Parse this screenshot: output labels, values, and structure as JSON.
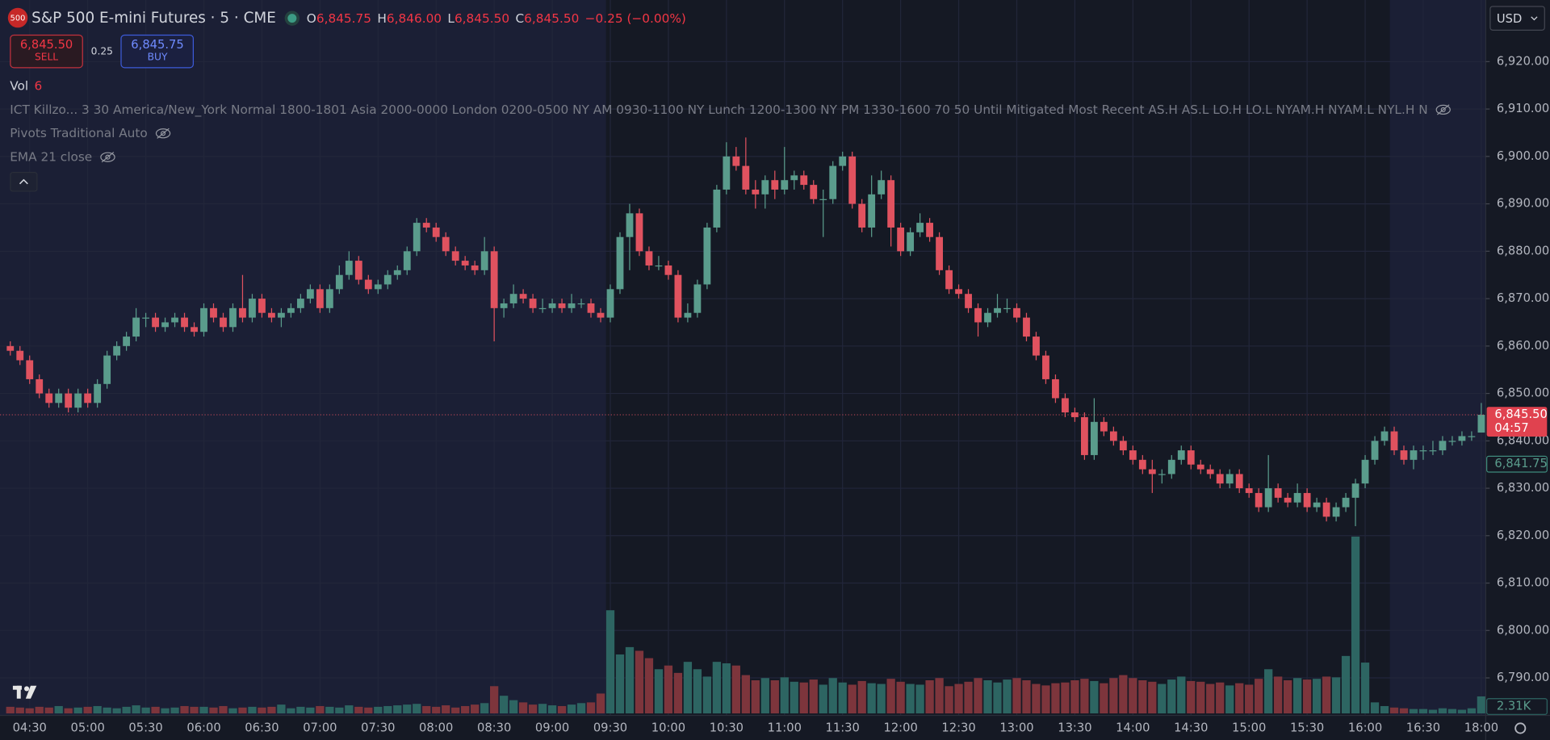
{
  "header": {
    "badge": "500",
    "symbol": "S&P 500 E-mini Futures · 5 · CME",
    "open_label": "O",
    "open": "6,845.75",
    "high_label": "H",
    "high": "6,846.00",
    "low_label": "L",
    "low": "6,845.50",
    "close_label": "C",
    "close": "6,845.50",
    "change": "−0.25 (−0.00%)"
  },
  "trade": {
    "sell_price": "6,845.50",
    "sell": "SELL",
    "spread": "0.25",
    "buy_price": "6,845.75",
    "buy": "BUY"
  },
  "indicators": {
    "vol_label": "Vol",
    "vol_value": "6",
    "killzones": "ICT Killzo... 3 30 America/New_York Normal 1800-1801 Asia 2000-0000 London 0200-0500 NY AM 0930-1100 NY Lunch 1200-1300 NY PM 1330-1600 70 50 Until Mitigated Most Recent AS.H AS.L LO.H LO.L NYAM.H NYAM.L NYL.H N",
    "pivots": "Pivots Traditional Auto",
    "ema": "EMA 21 close"
  },
  "currency": "USD",
  "scale_tags": {
    "last_price": "6,845.50",
    "countdown": "04:57",
    "prev_price": "6,841.75",
    "volume": "2.31K"
  },
  "chart_data": {
    "type": "candlestick",
    "up_color": "#5a9c8c",
    "down_color": "#e0525f",
    "volume_up_color": "#2d6562",
    "volume_down_color": "#7d353c",
    "grid": true,
    "ylim": [
      6782.5,
      6933
    ],
    "yticks": [
      {
        "value": 6790,
        "label": "6,790.00"
      },
      {
        "value": 6800,
        "label": "6,800.00"
      },
      {
        "value": 6810,
        "label": "6,810.00"
      },
      {
        "value": 6820,
        "label": "6,820.00"
      },
      {
        "value": 6830,
        "label": "6,830.00"
      },
      {
        "value": 6840,
        "label": "6,840.00"
      },
      {
        "value": 6850,
        "label": "6,850.00"
      },
      {
        "value": 6860,
        "label": "6,860.00"
      },
      {
        "value": 6870,
        "label": "6,870.00"
      },
      {
        "value": 6880,
        "label": "6,880.00"
      },
      {
        "value": 6890,
        "label": "6,890.00"
      },
      {
        "value": 6900,
        "label": "6,900.00"
      },
      {
        "value": 6910,
        "label": "6,910.00"
      },
      {
        "value": 6920,
        "label": "6,920.00"
      }
    ],
    "categories": [
      null,
      null,
      "04:30",
      null,
      null,
      null,
      null,
      null,
      "05:00",
      null,
      null,
      null,
      null,
      null,
      "05:30",
      null,
      null,
      null,
      null,
      null,
      "06:00",
      null,
      null,
      null,
      null,
      null,
      "06:30",
      null,
      null,
      null,
      null,
      null,
      "07:00",
      null,
      null,
      null,
      null,
      null,
      "07:30",
      null,
      null,
      null,
      null,
      null,
      "08:00",
      null,
      null,
      null,
      null,
      null,
      "08:30",
      null,
      null,
      null,
      null,
      null,
      "09:00",
      null,
      null,
      null,
      null,
      null,
      "09:30",
      null,
      null,
      null,
      null,
      null,
      "10:00",
      null,
      null,
      null,
      null,
      null,
      "10:30",
      null,
      null,
      null,
      null,
      null,
      "11:00",
      null,
      null,
      null,
      null,
      null,
      "11:30",
      null,
      null,
      null,
      null,
      null,
      "12:00",
      null,
      null,
      null,
      null,
      null,
      "12:30",
      null,
      null,
      null,
      null,
      null,
      "13:00",
      null,
      null,
      null,
      null,
      null,
      "13:30",
      null,
      null,
      null,
      null,
      null,
      "14:00",
      null,
      null,
      null,
      null,
      null,
      "14:30",
      null,
      null,
      null,
      null,
      null,
      "15:00",
      null,
      null,
      null,
      null,
      null,
      "15:30",
      null,
      null,
      null,
      null,
      null,
      "16:00",
      null,
      null,
      null,
      null,
      null,
      "16:30",
      null,
      null,
      null,
      null,
      null,
      "18:00"
    ],
    "ohlc": [
      [
        6860,
        6861,
        6858,
        6859
      ],
      [
        6859,
        6860,
        6856,
        6857
      ],
      [
        6857,
        6858,
        6852,
        6853
      ],
      [
        6853,
        6854,
        6849,
        6850
      ],
      [
        6850,
        6851,
        6847,
        6848
      ],
      [
        6848,
        6851,
        6847,
        6850
      ],
      [
        6850,
        6851,
        6846,
        6847
      ],
      [
        6847,
        6851,
        6846,
        6850
      ],
      [
        6850,
        6851,
        6847,
        6848
      ],
      [
        6848,
        6853,
        6847,
        6852
      ],
      [
        6852,
        6859,
        6851,
        6858
      ],
      [
        6858,
        6861,
        6857,
        6860
      ],
      [
        6860,
        6863,
        6859,
        6862
      ],
      [
        6862,
        6868,
        6861,
        6866
      ],
      [
        6866,
        6867,
        6864,
        6866
      ],
      [
        6866,
        6867,
        6863,
        6864
      ],
      [
        6864,
        6866,
        6863,
        6865
      ],
      [
        6865,
        6867,
        6864,
        6866
      ],
      [
        6866,
        6867,
        6863,
        6864
      ],
      [
        6864,
        6865,
        6862,
        6863
      ],
      [
        6863,
        6869,
        6862,
        6868
      ],
      [
        6868,
        6869,
        6865,
        6866
      ],
      [
        6866,
        6867,
        6863,
        6864
      ],
      [
        6864,
        6869,
        6863,
        6868
      ],
      [
        6868,
        6875,
        6865,
        6866
      ],
      [
        6866,
        6871,
        6865,
        6870
      ],
      [
        6870,
        6871,
        6866,
        6867
      ],
      [
        6867,
        6868,
        6865,
        6866
      ],
      [
        6866,
        6868,
        6864,
        6867
      ],
      [
        6867,
        6869,
        6866,
        6868
      ],
      [
        6868,
        6871,
        6867,
        6870
      ],
      [
        6870,
        6873,
        6869,
        6872
      ],
      [
        6872,
        6873,
        6867,
        6868
      ],
      [
        6868,
        6873,
        6867,
        6872
      ],
      [
        6872,
        6877,
        6871,
        6875
      ],
      [
        6875,
        6880,
        6874,
        6878
      ],
      [
        6878,
        6879,
        6873,
        6874
      ],
      [
        6874,
        6875,
        6871,
        6872
      ],
      [
        6872,
        6874,
        6871,
        6873
      ],
      [
        6873,
        6876,
        6872,
        6875
      ],
      [
        6875,
        6877,
        6874,
        6876
      ],
      [
        6876,
        6881,
        6875,
        6880
      ],
      [
        6880,
        6887,
        6879,
        6886
      ],
      [
        6886,
        6887,
        6884,
        6885
      ],
      [
        6885,
        6886,
        6882,
        6883
      ],
      [
        6883,
        6884,
        6879,
        6880
      ],
      [
        6880,
        6881,
        6877,
        6878
      ],
      [
        6878,
        6879,
        6876,
        6877
      ],
      [
        6877,
        6878,
        6875,
        6876
      ],
      [
        6876,
        6883,
        6875,
        6880
      ],
      [
        6880,
        6881,
        6861,
        6868
      ],
      [
        6868,
        6870,
        6866,
        6869
      ],
      [
        6869,
        6873,
        6868,
        6871
      ],
      [
        6871,
        6872,
        6869,
        6870
      ],
      [
        6870,
        6871,
        6867,
        6868
      ],
      [
        6868,
        6870,
        6867,
        6868
      ],
      [
        6868,
        6870,
        6867,
        6869
      ],
      [
        6869,
        6870,
        6867,
        6868
      ],
      [
        6868,
        6871,
        6867,
        6869
      ],
      [
        6869,
        6870,
        6868,
        6869
      ],
      [
        6869,
        6870,
        6866,
        6867
      ],
      [
        6867,
        6868,
        6865,
        6866
      ],
      [
        6866,
        6873,
        6865,
        6872
      ],
      [
        6872,
        6884,
        6871,
        6883
      ],
      [
        6883,
        6890,
        6876,
        6888
      ],
      [
        6888,
        6889,
        6879,
        6880
      ],
      [
        6880,
        6881,
        6876,
        6877
      ],
      [
        6877,
        6879,
        6876,
        6877
      ],
      [
        6877,
        6878,
        6874,
        6875
      ],
      [
        6875,
        6876,
        6865,
        6866
      ],
      [
        6866,
        6869,
        6865,
        6867
      ],
      [
        6867,
        6874,
        6866,
        6873
      ],
      [
        6873,
        6886,
        6872,
        6885
      ],
      [
        6885,
        6894,
        6884,
        6893
      ],
      [
        6893,
        6903,
        6892,
        6900
      ],
      [
        6900,
        6902,
        6897,
        6898
      ],
      [
        6898,
        6904,
        6892,
        6893
      ],
      [
        6893,
        6895,
        6889,
        6892
      ],
      [
        6892,
        6896,
        6889,
        6895
      ],
      [
        6895,
        6897,
        6891,
        6893
      ],
      [
        6893,
        6902,
        6892,
        6895
      ],
      [
        6895,
        6897,
        6893,
        6896
      ],
      [
        6896,
        6897,
        6893,
        6894
      ],
      [
        6894,
        6895,
        6890,
        6891
      ],
      [
        6891,
        6893,
        6883,
        6891
      ],
      [
        6891,
        6899,
        6890,
        6898
      ],
      [
        6898,
        6901,
        6897,
        6900
      ],
      [
        6900,
        6901,
        6889,
        6890
      ],
      [
        6890,
        6891,
        6884,
        6885
      ],
      [
        6885,
        6896,
        6883,
        6892
      ],
      [
        6892,
        6897,
        6891,
        6895
      ],
      [
        6895,
        6896,
        6881,
        6885
      ],
      [
        6885,
        6886,
        6879,
        6880
      ],
      [
        6880,
        6885,
        6879,
        6884
      ],
      [
        6884,
        6888,
        6883,
        6886
      ],
      [
        6886,
        6887,
        6882,
        6883
      ],
      [
        6883,
        6884,
        6875,
        6876
      ],
      [
        6876,
        6877,
        6871,
        6872
      ],
      [
        6872,
        6873,
        6870,
        6871
      ],
      [
        6871,
        6872,
        6867,
        6868
      ],
      [
        6868,
        6869,
        6862,
        6865
      ],
      [
        6865,
        6868,
        6864,
        6867
      ],
      [
        6867,
        6871,
        6866,
        6868
      ],
      [
        6868,
        6870,
        6867,
        6868
      ],
      [
        6868,
        6869,
        6865,
        6866
      ],
      [
        6866,
        6867,
        6861,
        6862
      ],
      [
        6862,
        6863,
        6857,
        6858
      ],
      [
        6858,
        6859,
        6852,
        6853
      ],
      [
        6853,
        6854,
        6848,
        6849
      ],
      [
        6849,
        6850,
        6845,
        6846
      ],
      [
        6846,
        6847,
        6844,
        6845
      ],
      [
        6845,
        6846,
        6836,
        6837
      ],
      [
        6837,
        6849,
        6836,
        6844
      ],
      [
        6844,
        6845,
        6841,
        6842
      ],
      [
        6842,
        6843,
        6839,
        6840
      ],
      [
        6840,
        6841,
        6837,
        6838
      ],
      [
        6838,
        6839,
        6835,
        6836
      ],
      [
        6836,
        6837,
        6833,
        6834
      ],
      [
        6834,
        6836,
        6829,
        6833
      ],
      [
        6833,
        6834,
        6831,
        6833
      ],
      [
        6833,
        6837,
        6832,
        6836
      ],
      [
        6836,
        6839,
        6835,
        6838
      ],
      [
        6838,
        6839,
        6834,
        6835
      ],
      [
        6835,
        6836,
        6833,
        6834
      ],
      [
        6834,
        6835,
        6832,
        6833
      ],
      [
        6833,
        6834,
        6830,
        6831
      ],
      [
        6831,
        6834,
        6830,
        6833
      ],
      [
        6833,
        6834,
        6829,
        6830
      ],
      [
        6830,
        6831,
        6828,
        6829
      ],
      [
        6829,
        6830,
        6825,
        6826
      ],
      [
        6826,
        6837,
        6825,
        6830
      ],
      [
        6830,
        6831,
        6827,
        6828
      ],
      [
        6828,
        6829,
        6826,
        6827
      ],
      [
        6827,
        6831,
        6826,
        6829
      ],
      [
        6829,
        6830,
        6825,
        6826
      ],
      [
        6826,
        6828,
        6825,
        6827
      ],
      [
        6827,
        6828,
        6823,
        6824
      ],
      [
        6824,
        6827,
        6823,
        6826
      ],
      [
        6826,
        6829,
        6825,
        6828
      ],
      [
        6828,
        6832,
        6822,
        6831
      ],
      [
        6831,
        6837,
        6830,
        6836
      ],
      [
        6836,
        6841,
        6835,
        6840
      ],
      [
        6840,
        6843,
        6839,
        6842
      ],
      [
        6842,
        6843,
        6837,
        6838
      ],
      [
        6838,
        6839,
        6835,
        6836
      ],
      [
        6836,
        6839,
        6834,
        6838
      ],
      [
        6838,
        6839,
        6836,
        6838
      ],
      [
        6838,
        6840,
        6837,
        6838
      ],
      [
        6838,
        6841,
        6837,
        6840
      ],
      [
        6840,
        6841,
        6839,
        6840
      ],
      [
        6840,
        6842,
        6839,
        6841
      ],
      [
        6841,
        6842,
        6840,
        6841
      ],
      [
        6841.75,
        6848,
        6841.75,
        6845.5
      ]
    ],
    "volume": [
      900,
      800,
      700,
      900,
      800,
      1000,
      700,
      800,
      900,
      1000,
      800,
      700,
      900,
      1100,
      800,
      900,
      700,
      800,
      1000,
      900,
      900,
      800,
      1000,
      700,
      800,
      900,
      800,
      900,
      1200,
      700,
      900,
      800,
      1000,
      900,
      800,
      1100,
      900,
      800,
      900,
      1000,
      1100,
      1200,
      1300,
      1000,
      900,
      1100,
      800,
      1000,
      1200,
      1400,
      3700,
      2400,
      1800,
      1500,
      1200,
      1300,
      1100,
      1000,
      1200,
      1400,
      1500,
      2700,
      14000,
      8000,
      9000,
      8500,
      7500,
      6000,
      6500,
      5500,
      7000,
      6000,
      5000,
      7000,
      6800,
      6500,
      5200,
      4500,
      4800,
      4500,
      4900,
      4300,
      4200,
      4600,
      3900,
      4800,
      4200,
      3900,
      4400,
      4100,
      4000,
      4700,
      4300,
      4000,
      3900,
      4500,
      4800,
      3700,
      4000,
      4300,
      4800,
      4500,
      4200,
      4600,
      4800,
      4500,
      4000,
      3800,
      4100,
      4200,
      4500,
      4700,
      4400,
      4100,
      4800,
      5200,
      4800,
      4500,
      4300,
      4000,
      4600,
      5000,
      4400,
      4300,
      4000,
      4200,
      3800,
      4100,
      3900,
      4700,
      6000,
      5000,
      4500,
      4800,
      4600,
      4700,
      5000,
      4900,
      7800,
      24000,
      6900,
      1500,
      1000,
      800,
      700,
      600,
      600,
      500,
      700,
      600,
      500,
      700,
      2310
    ]
  }
}
